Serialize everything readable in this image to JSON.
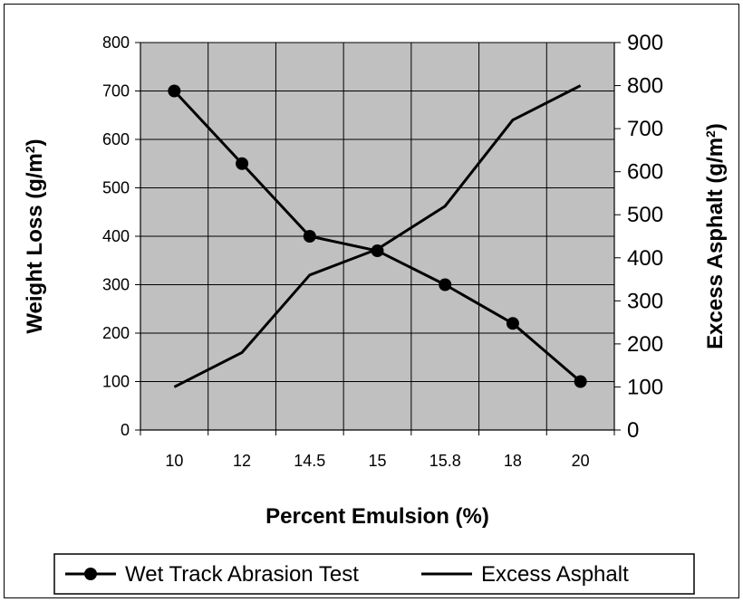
{
  "chart_data": {
    "type": "line",
    "categories": [
      "10",
      "12",
      "14.5",
      "15",
      "15.8",
      "18",
      "20"
    ],
    "series": [
      {
        "name": "Wet Track Abrasion Test",
        "axis": "left",
        "marker": "circle",
        "values": [
          700,
          550,
          400,
          370,
          300,
          220,
          100
        ]
      },
      {
        "name": "Excess Asphalt",
        "axis": "right",
        "marker": "none",
        "values": [
          100,
          180,
          360,
          420,
          520,
          720,
          800
        ]
      }
    ],
    "xlabel": "Percent Emulsion (%)",
    "ylabel_left": {
      "main": "Weight Loss (g/m",
      "sup": "2",
      "close": ")"
    },
    "ylabel_right": {
      "main": "Excess Asphalt (g/m",
      "sup": "2",
      "close": ")"
    },
    "ylim_left": [
      0,
      800
    ],
    "yticks_left": [
      "0",
      "100",
      "200",
      "300",
      "400",
      "500",
      "600",
      "700",
      "800"
    ],
    "ylim_right": [
      0,
      900
    ],
    "yticks_right": [
      "0",
      "100",
      "200",
      "300",
      "400",
      "500",
      "600",
      "700",
      "800",
      "900"
    ],
    "grid": true,
    "plot_background": "#c0c0c0",
    "line_color": "#000000",
    "legend_position": "bottom"
  }
}
